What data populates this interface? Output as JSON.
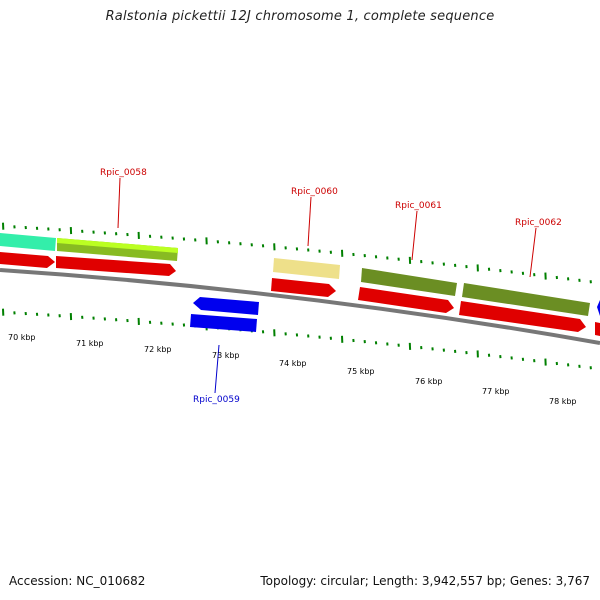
{
  "title": "Ralstonia pickettii 12J chromosome 1, complete sequence",
  "footer": {
    "accession": "Accession: NC_010682",
    "summary": "Topology: circular; Length: 3,942,557 bp; Genes: 3,767"
  },
  "colors": {
    "cds": "#ff0000",
    "reverse_gene": "#0000ff",
    "tick": "#008000",
    "backbone": "#888888",
    "label_forward": "#cc0000",
    "label_reverse": "#0000cc"
  },
  "scale": {
    "unit": "kbp",
    "labels": [
      "70 kbp",
      "71 kbp",
      "72 kbp",
      "73 kbp",
      "74 kbp",
      "75 kbp",
      "76 kbp",
      "77 kbp",
      "78 kbp"
    ]
  },
  "genes": [
    {
      "name": "Rpic_0058",
      "strand": "forward",
      "color": "#99e600"
    },
    {
      "name": "Rpic_0059",
      "strand": "reverse",
      "color": "#0000ff"
    },
    {
      "name": "Rpic_0060",
      "strand": "forward",
      "color": "#eee08a"
    },
    {
      "name": "Rpic_0061",
      "strand": "forward",
      "color": "#6b8e23"
    },
    {
      "name": "Rpic_0062",
      "strand": "forward",
      "color": "#6b8e23"
    }
  ]
}
